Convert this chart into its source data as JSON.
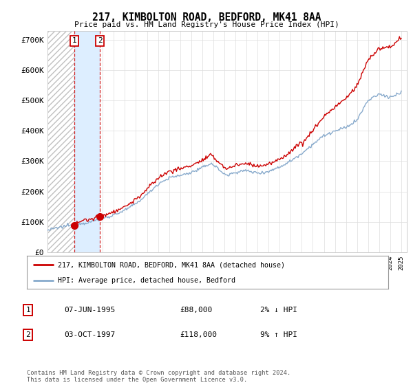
{
  "title": "217, KIMBOLTON ROAD, BEDFORD, MK41 8AA",
  "subtitle": "Price paid vs. HM Land Registry's House Price Index (HPI)",
  "ylabel_ticks": [
    "£0",
    "£100K",
    "£200K",
    "£300K",
    "£400K",
    "£500K",
    "£600K",
    "£700K"
  ],
  "yvalues": [
    0,
    100000,
    200000,
    300000,
    400000,
    500000,
    600000,
    700000
  ],
  "ylim": [
    0,
    730000
  ],
  "xlim_start": 1993.0,
  "xlim_end": 2025.5,
  "sale1_date": 1995.44,
  "sale1_price": 88000,
  "sale2_date": 1997.75,
  "sale2_price": 118000,
  "red_color": "#cc0000",
  "blue_color": "#88aacc",
  "legend_label1": "217, KIMBOLTON ROAD, BEDFORD, MK41 8AA (detached house)",
  "legend_label2": "HPI: Average price, detached house, Bedford",
  "tx1_label": "1",
  "tx1_date": "07-JUN-1995",
  "tx1_price": "£88,000",
  "tx1_hpi": "2% ↓ HPI",
  "tx2_label": "2",
  "tx2_date": "03-OCT-1997",
  "tx2_price": "£118,000",
  "tx2_hpi": "9% ↑ HPI",
  "footer": "Contains HM Land Registry data © Crown copyright and database right 2024.\nThis data is licensed under the Open Government Licence v3.0.",
  "shade_color": "#ddeeff",
  "bg_color": "#ffffff"
}
